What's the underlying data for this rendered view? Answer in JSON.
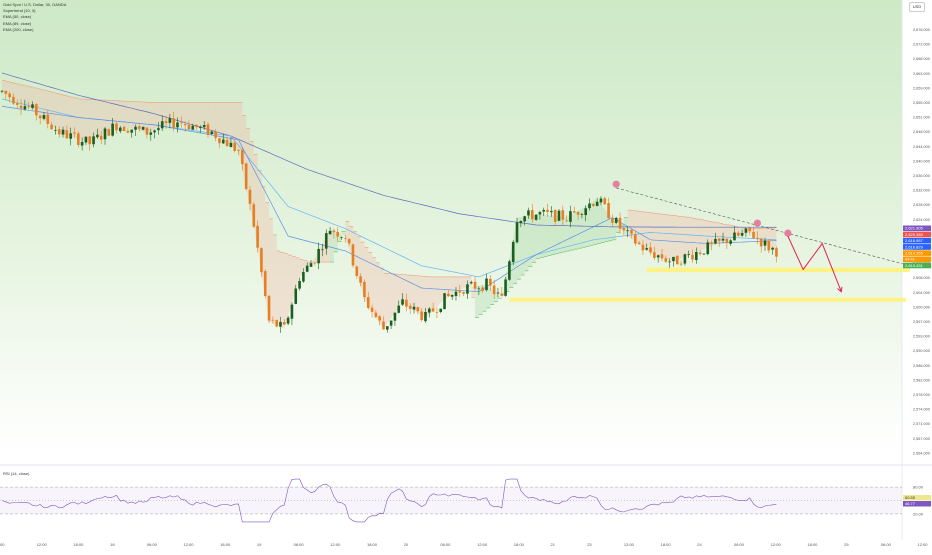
{
  "header": {
    "title": "Gold Spot / U.S. Dollar, 30, OANDA",
    "indicators": [
      "Supertrend (10, 3)",
      "EMA (50, close)",
      "EMA (89, close)",
      "EMA (200, close)"
    ],
    "currency": "USD"
  },
  "rsi": {
    "label": "RSI (14, close)",
    "axis_ticks": [
      "80.00",
      "20.00"
    ],
    "badges": [
      {
        "text": "50.55",
        "color": "#f0e68c"
      },
      {
        "text": "46.77",
        "color": "#7e57c2"
      }
    ]
  },
  "price_axis": {
    "ticks": [
      "2,676.000",
      "2,672.000",
      "2,668.000",
      "2,663.000",
      "2,659.000",
      "2,655.000",
      "2,651.000",
      "2,648.000",
      "2,644.000",
      "2,640.000",
      "2,636.000",
      "2,632.000",
      "2,628.000",
      "2,624.000",
      "2,620.000",
      "2,616.000",
      "2,612.000",
      "2,608.000",
      "2,604.000",
      "2,600.000",
      "2,597.000",
      "2,593.000",
      "2,590.000",
      "2,586.000",
      "2,582.000",
      "2,578.000",
      "2,574.000",
      "2,571.000",
      "2,567.000",
      "2,564.000"
    ],
    "badges": [
      {
        "text": "2,621.905",
        "color": "#7e57c2"
      },
      {
        "text": "2,620.380",
        "color": "#ef5350"
      },
      {
        "text": "2,616.957",
        "color": "#2962ff"
      },
      {
        "text": "2,616.829",
        "color": "#2962ff"
      },
      {
        "text": "2,614.355",
        "color": "#ff9800"
      },
      {
        "text": "04:41",
        "color": "#ff9800"
      },
      {
        "text": "2,610.431",
        "color": "#4caf50"
      }
    ]
  },
  "time_axis": {
    "ticks": [
      "00",
      "12:00",
      "18:00",
      "18",
      "06:00",
      "12:00",
      "18:00",
      "19",
      "06:00",
      "12:00",
      "18:00",
      "20",
      "06:00",
      "12:00",
      "18:00",
      "21",
      "23",
      "12:00",
      "18:00",
      "24",
      "06:00",
      "12:00",
      "18:00",
      "25",
      "06:00",
      "12:00"
    ]
  },
  "chart_data": {
    "type": "candlestick",
    "title": "Gold Spot / U.S. Dollar, 30, OANDA",
    "ylim": [
      2563,
      2679
    ],
    "rsi_ylim": [
      0,
      100
    ],
    "rsi_levels": [
      70,
      50,
      30
    ],
    "candle_anchors": [
      {
        "i": 0,
        "p": 2657
      },
      {
        "i": 8,
        "p": 2652
      },
      {
        "i": 15,
        "p": 2646
      },
      {
        "i": 23,
        "p": 2643
      },
      {
        "i": 30,
        "p": 2648
      },
      {
        "i": 38,
        "p": 2646
      },
      {
        "i": 46,
        "p": 2649
      },
      {
        "i": 55,
        "p": 2646
      },
      {
        "i": 62,
        "p": 2641
      },
      {
        "i": 66,
        "p": 2621
      },
      {
        "i": 70,
        "p": 2595
      },
      {
        "i": 74,
        "p": 2593
      },
      {
        "i": 78,
        "p": 2607
      },
      {
        "i": 82,
        "p": 2612
      },
      {
        "i": 86,
        "p": 2620
      },
      {
        "i": 90,
        "p": 2618
      },
      {
        "i": 95,
        "p": 2601
      },
      {
        "i": 100,
        "p": 2593
      },
      {
        "i": 105,
        "p": 2600
      },
      {
        "i": 111,
        "p": 2596
      },
      {
        "i": 116,
        "p": 2601
      },
      {
        "i": 121,
        "p": 2604
      },
      {
        "i": 127,
        "p": 2605
      },
      {
        "i": 131,
        "p": 2601
      },
      {
        "i": 135,
        "p": 2623
      },
      {
        "i": 141,
        "p": 2624
      },
      {
        "i": 148,
        "p": 2623
      },
      {
        "i": 156,
        "p": 2628
      },
      {
        "i": 163,
        "p": 2619
      },
      {
        "i": 169,
        "p": 2614
      },
      {
        "i": 176,
        "p": 2611
      },
      {
        "i": 183,
        "p": 2614
      },
      {
        "i": 190,
        "p": 2617
      },
      {
        "i": 196,
        "p": 2619
      },
      {
        "i": 201,
        "p": 2615
      },
      {
        "i": 203,
        "p": 2614
      }
    ],
    "ema_200": [
      {
        "i": 0,
        "p": 2662
      },
      {
        "i": 20,
        "p": 2656
      },
      {
        "i": 40,
        "p": 2651
      },
      {
        "i": 60,
        "p": 2645
      },
      {
        "i": 80,
        "p": 2636
      },
      {
        "i": 100,
        "p": 2629
      },
      {
        "i": 120,
        "p": 2624
      },
      {
        "i": 140,
        "p": 2621
      },
      {
        "i": 160,
        "p": 2620.5
      },
      {
        "i": 180,
        "p": 2620.4
      },
      {
        "i": 203,
        "p": 2620.4
      }
    ],
    "ema_89": [
      {
        "i": 0,
        "p": 2655
      },
      {
        "i": 20,
        "p": 2650
      },
      {
        "i": 40,
        "p": 2648
      },
      {
        "i": 60,
        "p": 2645
      },
      {
        "i": 75,
        "p": 2626
      },
      {
        "i": 90,
        "p": 2620
      },
      {
        "i": 110,
        "p": 2610
      },
      {
        "i": 125,
        "p": 2607
      },
      {
        "i": 140,
        "p": 2613
      },
      {
        "i": 155,
        "p": 2617
      },
      {
        "i": 170,
        "p": 2619
      },
      {
        "i": 185,
        "p": 2618
      },
      {
        "i": 203,
        "p": 2617
      }
    ],
    "ema_50": [
      {
        "i": 0,
        "p": 2653
      },
      {
        "i": 20,
        "p": 2650
      },
      {
        "i": 40,
        "p": 2648
      },
      {
        "i": 62,
        "p": 2644
      },
      {
        "i": 75,
        "p": 2618
      },
      {
        "i": 90,
        "p": 2614
      },
      {
        "i": 110,
        "p": 2604
      },
      {
        "i": 125,
        "p": 2603
      },
      {
        "i": 140,
        "p": 2613
      },
      {
        "i": 160,
        "p": 2623
      },
      {
        "i": 170,
        "p": 2617
      },
      {
        "i": 185,
        "p": 2616
      },
      {
        "i": 203,
        "p": 2616.8
      }
    ],
    "supertrend": [
      {
        "i": 0,
        "p": 2660,
        "trend": "down"
      },
      {
        "i": 20,
        "p": 2655,
        "trend": "down"
      },
      {
        "i": 40,
        "p": 2654,
        "trend": "down"
      },
      {
        "i": 62,
        "p": 2654,
        "trend": "down"
      },
      {
        "i": 66,
        "p": 2640,
        "trend": "down"
      },
      {
        "i": 72,
        "p": 2614,
        "trend": "down"
      },
      {
        "i": 80,
        "p": 2611,
        "trend": "down"
      },
      {
        "i": 86,
        "p": 2611,
        "trend": "up"
      },
      {
        "i": 90,
        "p": 2622,
        "trend": "down"
      },
      {
        "i": 100,
        "p": 2608,
        "trend": "down"
      },
      {
        "i": 112,
        "p": 2607,
        "trend": "down"
      },
      {
        "i": 122,
        "p": 2607,
        "trend": "down"
      },
      {
        "i": 124,
        "p": 2596,
        "trend": "up"
      },
      {
        "i": 132,
        "p": 2603,
        "trend": "up"
      },
      {
        "i": 140,
        "p": 2612,
        "trend": "up"
      },
      {
        "i": 160,
        "p": 2617,
        "trend": "up"
      },
      {
        "i": 164,
        "p": 2625,
        "trend": "down"
      },
      {
        "i": 180,
        "p": 2623,
        "trend": "down"
      },
      {
        "i": 195,
        "p": 2620,
        "trend": "down"
      },
      {
        "i": 203,
        "p": 2620.3,
        "trend": "down"
      }
    ],
    "drawings": {
      "trendline": [
        {
          "i": 161,
          "p": 2631
        },
        {
          "i": 238,
          "p": 2610
        }
      ],
      "support_zones": [
        {
          "i0": 169,
          "i1": 238,
          "p0": 2609.5,
          "p1": 2608.3
        },
        {
          "i0": 133,
          "i1": 237,
          "p0": 2601.4,
          "p1": 2600.3
        }
      ],
      "pivot_markers": [
        {
          "i": 161,
          "p": 2632
        },
        {
          "i": 198,
          "p": 2621.5
        },
        {
          "i": 206,
          "p": 2618.8
        }
      ],
      "projection": [
        {
          "i": 206,
          "p": 2618
        },
        {
          "i": 210,
          "p": 2609
        },
        {
          "i": 215,
          "p": 2616
        },
        {
          "i": 220,
          "p": 2603
        }
      ]
    }
  }
}
